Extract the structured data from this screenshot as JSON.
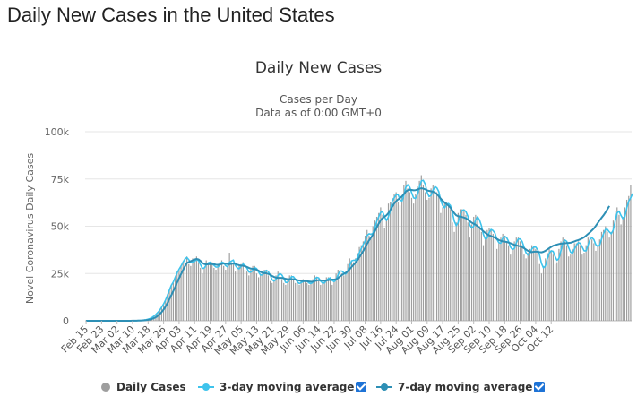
{
  "page": {
    "title": "Daily New Cases in the United States"
  },
  "colors": {
    "bars": "#9e9e9e",
    "avg3": "#3ec3ec",
    "avg7": "#2d8fb5",
    "checkbox": "#1e73d6"
  },
  "legend": {
    "daily": "Daily Cases",
    "avg3": "3-day moving average",
    "avg7": "7-day moving average"
  },
  "chart_data": {
    "type": "bar",
    "title": "Daily New Cases",
    "subtitle": "Cases per Day",
    "subtitle2": "Data as of 0:00 GMT+0",
    "ylabel": "Novel Coronavirus Daily Cases",
    "ylim": [
      0,
      100000
    ],
    "yticks": [
      0,
      25000,
      50000,
      75000,
      100000
    ],
    "ytick_labels": [
      "0",
      "25k",
      "50k",
      "75k",
      "100k"
    ],
    "x_start": "Feb 15",
    "xtick_labels": [
      "Feb 15",
      "Feb 23",
      "Mar 02",
      "Mar 10",
      "Mar 18",
      "Mar 26",
      "Apr 03",
      "Apr 11",
      "Apr 19",
      "Apr 27",
      "May 05",
      "May 13",
      "May 21",
      "May 29",
      "Jun 06",
      "Jun 14",
      "Jun 22",
      "Jun 30",
      "Jul 08",
      "Jul 16",
      "Jul 24",
      "Aug 01",
      "Aug 09",
      "Aug 17",
      "Aug 25",
      "Sep 02",
      "Sep 10",
      "Sep 18",
      "Sep 26",
      "Oct 04",
      "Oct 12"
    ],
    "grid": true,
    "legend_position": "bottom",
    "series": [
      {
        "name": "Daily Cases",
        "type": "bar",
        "values": [
          0,
          0,
          0,
          0,
          0,
          0,
          0,
          0,
          0,
          0,
          0,
          0,
          0,
          0,
          0,
          0,
          0,
          0,
          10,
          10,
          20,
          30,
          40,
          50,
          60,
          80,
          100,
          150,
          200,
          300,
          450,
          600,
          900,
          1200,
          1800,
          2500,
          3500,
          4500,
          5500,
          7500,
          9000,
          11000,
          14000,
          17000,
          19000,
          20000,
          23000,
          26000,
          27000,
          29000,
          31000,
          33000,
          34000,
          30000,
          29000,
          33000,
          32000,
          34000,
          31000,
          28000,
          25000,
          28000,
          32000,
          30000,
          30000,
          31000,
          28000,
          27000,
          30000,
          31000,
          32000,
          29000,
          27000,
          29000,
          36000,
          31000,
          30000,
          26000,
          28000,
          29000,
          30000,
          31000,
          27000,
          26000,
          24000,
          27000,
          29000,
          29000,
          25000,
          23000,
          24000,
          26000,
          27000,
          27000,
          24000,
          21000,
          20000,
          22000,
          24000,
          26000,
          25000,
          22000,
          20000,
          19000,
          22000,
          24000,
          24000,
          22000,
          20000,
          20000,
          19000,
          21000,
          22000,
          21000,
          20000,
          19000,
          20000,
          22000,
          24000,
          23000,
          21000,
          19000,
          20000,
          21000,
          23000,
          23000,
          22000,
          19000,
          21000,
          25000,
          27000,
          27000,
          25000,
          24000,
          25000,
          30000,
          33000,
          32000,
          31000,
          33000,
          36000,
          39000,
          40000,
          42000,
          45000,
          48000,
          45000,
          44000,
          50000,
          53000,
          55000,
          57000,
          60000,
          56000,
          49000,
          54000,
          62000,
          63000,
          65000,
          67000,
          68000,
          63000,
          61000,
          66000,
          72000,
          74000,
          70000,
          68000,
          65000,
          62000,
          67000,
          71000,
          74000,
          77000,
          72000,
          68000,
          64000,
          65000,
          70000,
          72000,
          71000,
          68000,
          66000,
          57000,
          60000,
          62000,
          63000,
          61000,
          59000,
          52000,
          47000,
          52000,
          57000,
          59000,
          59000,
          58000,
          56000,
          52000,
          44000,
          51000,
          55000,
          56000,
          54000,
          50000,
          47000,
          40000,
          43000,
          48000,
          49000,
          48000,
          46000,
          45000,
          38000,
          41000,
          44000,
          46000,
          44000,
          42000,
          40000,
          35000,
          38000,
          42000,
          44000,
          44000,
          42000,
          40000,
          35000,
          33000,
          36000,
          38000,
          40000,
          39000,
          38000,
          36000,
          30000,
          25000,
          29000,
          33000,
          36000,
          38000,
          37000,
          35000,
          30000,
          31000,
          38000,
          42000,
          44000,
          42000,
          40000,
          34000,
          35000,
          38000,
          41000,
          41000,
          42000,
          40000,
          35000,
          36000,
          40000,
          44000,
          45000,
          43000,
          41000,
          37000,
          40000,
          43000,
          47000,
          48000,
          50000,
          47000,
          44000,
          47000,
          53000,
          58000,
          60000,
          56000,
          51000,
          55000,
          60000,
          64000,
          66000,
          72000
        ]
      },
      {
        "name": "3-day moving average",
        "type": "line",
        "values": [
          0,
          0,
          0,
          0,
          0,
          0,
          0,
          0,
          0,
          0,
          0,
          0,
          0,
          0,
          0,
          0,
          0,
          0,
          10,
          10,
          20,
          30,
          40,
          50,
          60,
          80,
          100,
          140,
          200,
          290,
          430,
          600,
          880,
          1200,
          1750,
          2450,
          3350,
          4400,
          5600,
          7200,
          8900,
          11000,
          13500,
          16300,
          18800,
          20500,
          23000,
          25300,
          27300,
          29000,
          31000,
          32600,
          33500,
          32300,
          30900,
          31000,
          31500,
          32400,
          31800,
          29800,
          27700,
          27900,
          29600,
          30600,
          31000,
          30400,
          29300,
          28400,
          28500,
          29500,
          31000,
          30700,
          29200,
          28500,
          31000,
          31600,
          32100,
          29300,
          28000,
          27500,
          28800,
          30000,
          29300,
          27900,
          25800,
          25700,
          26700,
          28100,
          27600,
          25800,
          24200,
          24300,
          25600,
          26700,
          26000,
          24100,
          21700,
          21000,
          22000,
          24000,
          25000,
          24300,
          22400,
          20300,
          20300,
          21600,
          23300,
          23300,
          22000,
          20700,
          19700,
          20200,
          20700,
          21300,
          21000,
          20000,
          19700,
          20300,
          22000,
          23000,
          22700,
          21000,
          20000,
          20000,
          21300,
          22300,
          22700,
          21300,
          20700,
          21700,
          24300,
          26300,
          26300,
          25300,
          24700,
          26300,
          29000,
          31700,
          32000,
          32000,
          33300,
          36000,
          38300,
          40300,
          42300,
          45000,
          46000,
          45700,
          46300,
          49000,
          52700,
          55000,
          57300,
          57700,
          55000,
          53000,
          55000,
          58300,
          63300,
          65000,
          66700,
          66700,
          64000,
          63300,
          66300,
          70700,
          72000,
          70700,
          67700,
          65000,
          64700,
          66700,
          70700,
          74000,
          74300,
          72300,
          68000,
          65700,
          66300,
          69000,
          71000,
          70300,
          68300,
          63700,
          61000,
          59700,
          61700,
          62000,
          61000,
          57300,
          52700,
          50300,
          52000,
          56000,
          58300,
          58700,
          57700,
          55300,
          50700,
          49000,
          50000,
          53300,
          55000,
          53300,
          50300,
          45700,
          43300,
          43700,
          46700,
          48300,
          47700,
          46300,
          43000,
          41300,
          41000,
          43700,
          44700,
          44000,
          42000,
          39000,
          37700,
          38300,
          41300,
          43300,
          43300,
          42000,
          39000,
          36000,
          34700,
          35700,
          38000,
          39000,
          39000,
          37700,
          34700,
          30300,
          28000,
          29000,
          32700,
          35700,
          37000,
          36700,
          34000,
          32000,
          33000,
          37000,
          41300,
          42700,
          42000,
          38700,
          36300,
          35700,
          38000,
          40000,
          41300,
          41000,
          39000,
          37000,
          37000,
          40000,
          43000,
          44000,
          43000,
          40300,
          39300,
          40000,
          43300,
          46000,
          48300,
          48300,
          47000,
          46000,
          48000,
          52700,
          57000,
          58000,
          55700,
          54000,
          55000,
          59700,
          63300,
          65000,
          67300
        ]
      },
      {
        "name": "7-day moving average",
        "type": "line",
        "values": [
          0,
          0,
          0,
          0,
          0,
          0,
          0,
          0,
          0,
          0,
          0,
          0,
          0,
          0,
          0,
          0,
          0,
          0,
          10,
          10,
          15,
          20,
          25,
          30,
          40,
          50,
          65,
          90,
          120,
          170,
          250,
          350,
          500,
          700,
          1000,
          1400,
          1900,
          2600,
          3500,
          4600,
          5900,
          7500,
          9400,
          11500,
          13600,
          15700,
          17900,
          20200,
          22500,
          24700,
          26800,
          28800,
          30500,
          31100,
          31500,
          32000,
          32400,
          32700,
          32500,
          31700,
          30600,
          30000,
          29800,
          29900,
          30000,
          30000,
          29900,
          29700,
          29600,
          29800,
          30100,
          30300,
          30200,
          30000,
          30000,
          30100,
          30400,
          30100,
          29700,
          29400,
          29200,
          29100,
          28900,
          28500,
          28000,
          27600,
          27500,
          27400,
          27000,
          26500,
          25900,
          25400,
          25200,
          25100,
          24800,
          24400,
          23700,
          23200,
          22800,
          22700,
          22700,
          22700,
          22500,
          22200,
          22000,
          22000,
          22000,
          22000,
          21800,
          21500,
          21300,
          21100,
          21000,
          21000,
          20900,
          20800,
          20700,
          20700,
          21000,
          21300,
          21500,
          21400,
          21300,
          21200,
          21300,
          21500,
          21700,
          21800,
          21800,
          22000,
          22600,
          23400,
          24200,
          24800,
          25400,
          26200,
          27300,
          28500,
          29600,
          30700,
          32000,
          33600,
          35200,
          36900,
          38700,
          40700,
          42500,
          44000,
          45500,
          47400,
          49400,
          51400,
          53100,
          54300,
          55000,
          55800,
          57000,
          58600,
          60300,
          62000,
          63300,
          64200,
          64900,
          65800,
          67000,
          68300,
          69100,
          69300,
          69200,
          69000,
          69100,
          69400,
          69800,
          70100,
          69900,
          69500,
          69000,
          68700,
          68500,
          68300,
          67800,
          67000,
          65900,
          64600,
          63500,
          62500,
          61700,
          60900,
          59800,
          58300,
          56900,
          55800,
          55300,
          55100,
          54900,
          54600,
          54200,
          53500,
          52700,
          51900,
          51300,
          50800,
          50000,
          49200,
          48300,
          47300,
          46500,
          45800,
          45200,
          44800,
          44400,
          43900,
          43300,
          42700,
          42300,
          42000,
          41900,
          41700,
          41400,
          41000,
          40600,
          40200,
          39900,
          39600,
          39400,
          39000,
          38400,
          37700,
          37000,
          36500,
          36300,
          36500,
          36600,
          36500,
          36300,
          36200,
          36500,
          37000,
          37700,
          38400,
          39100,
          39700,
          40000,
          40300,
          40600,
          40800,
          40900,
          41000,
          41100,
          41200,
          41300,
          41600,
          42000,
          42400,
          42700,
          43100,
          43600,
          44200,
          45000,
          45900,
          46800,
          47800,
          48800,
          50200,
          51700,
          53100,
          54500,
          55800,
          57300,
          59000,
          60700
        ]
      }
    ]
  }
}
